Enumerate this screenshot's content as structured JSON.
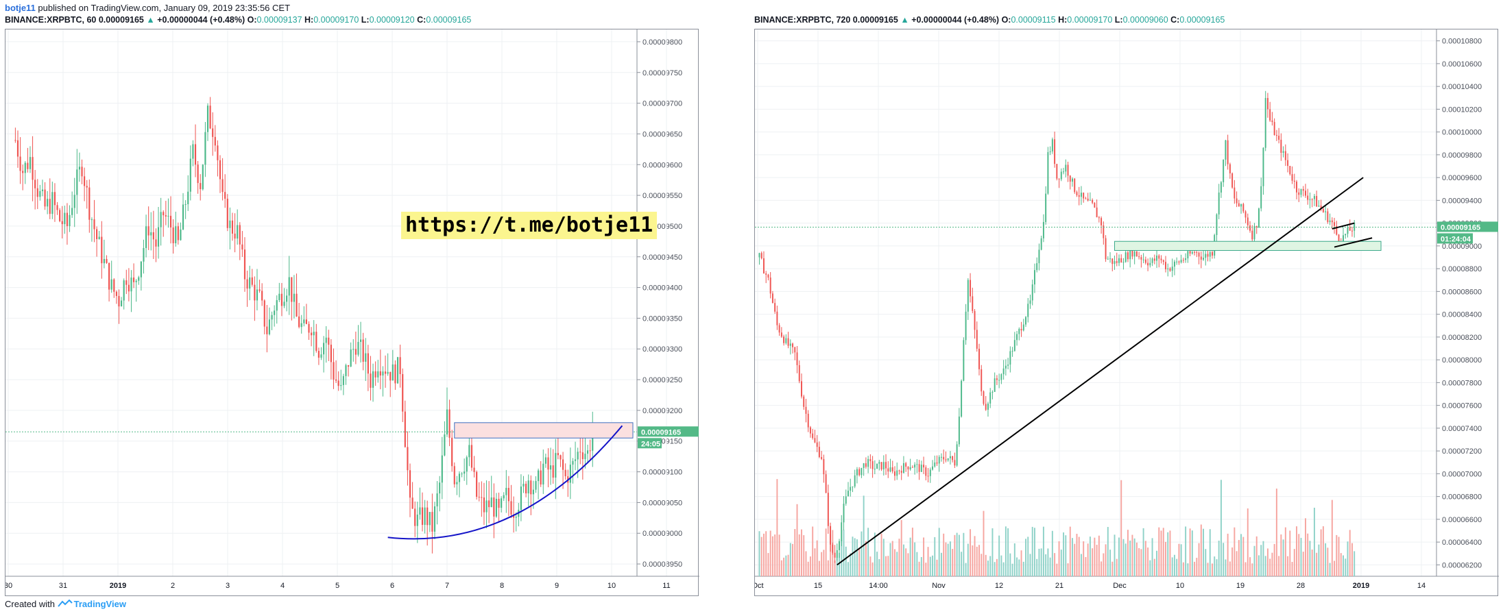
{
  "header": {
    "author": "botje11",
    "published_text": " published on TradingView.com, January 09, 2019 23:35:56 CET"
  },
  "footer": {
    "created_with": "Created with",
    "brand": "TradingView"
  },
  "annotation": {
    "text": "https://t.me/botje11"
  },
  "colors": {
    "up": "#4bb889",
    "down": "#ef5350",
    "vol_up": "#8fd2c8",
    "vol_down": "#f6a5a0",
    "last_price": "#53b987",
    "grid": "#eef0f3",
    "arc": "#1414c8",
    "trend": "#000000",
    "resist_fill": "#fbe0e0",
    "resist_stroke": "#3f6fc0",
    "support_fill": "#dff5e3",
    "support_stroke": "#3aa88a"
  },
  "chart_data": [
    {
      "type": "candlestick",
      "symbol": "BINANCE:XRPBTC, 60",
      "legend": {
        "symbol": "BINANCE:XRPBTC, 60",
        "last": "0.00009165",
        "change": "+0.00000044 (+0.48%)",
        "open": "0.00009137",
        "high": "0.00009170",
        "low": "0.00009120",
        "close": "0.00009165"
      },
      "last_price_label": "0.00009165",
      "countdown_label": "24:05",
      "x_tick_labels": [
        "30",
        "31",
        "2019",
        "2",
        "3",
        "4",
        "5",
        "6",
        "7",
        "8",
        "9",
        "10",
        "11"
      ],
      "y_tick_labels": [
        "0.00008950",
        "0.00009000",
        "0.00009050",
        "0.00009100",
        "0.00009150",
        "0.00009200",
        "0.00009250",
        "0.00009300",
        "0.00009350",
        "0.00009400",
        "0.00009450",
        "0.00009500",
        "0.00009550",
        "0.00009600",
        "0.00009650",
        "0.00009700",
        "0.00009750",
        "0.00009800"
      ],
      "ylim": [
        8.93e-05,
        9.82e-05
      ],
      "close_path": [
        [
          0,
          9.64e-05
        ],
        [
          3,
          9.59e-05
        ],
        [
          6,
          9.61e-05
        ],
        [
          9,
          9.56e-05
        ],
        [
          12,
          9.53e-05
        ],
        [
          15,
          9.54e-05
        ],
        [
          18,
          9.51e-05
        ],
        [
          21,
          9.5e-05
        ],
        [
          24,
          9.56e-05
        ],
        [
          27,
          9.6e-05
        ],
        [
          30,
          9.53e-05
        ],
        [
          33,
          9.48e-05
        ],
        [
          36,
          9.44e-05
        ],
        [
          39,
          9.4e-05
        ],
        [
          42,
          9.38e-05
        ],
        [
          45,
          9.42e-05
        ],
        [
          48,
          9.4e-05
        ],
        [
          51,
          9.45e-05
        ],
        [
          54,
          9.5e-05
        ],
        [
          57,
          9.47e-05
        ],
        [
          60,
          9.52e-05
        ],
        [
          63,
          9.5e-05
        ],
        [
          66,
          9.47e-05
        ],
        [
          69,
          9.54e-05
        ],
        [
          72,
          9.62e-05
        ],
        [
          75,
          9.57e-05
        ],
        [
          78,
          9.68e-05
        ],
        [
          81,
          9.65e-05
        ],
        [
          84,
          9.54e-05
        ],
        [
          87,
          9.5e-05
        ],
        [
          90,
          9.49e-05
        ],
        [
          93,
          9.42e-05
        ],
        [
          96,
          9.4e-05
        ],
        [
          99,
          9.38e-05
        ],
        [
          102,
          9.33e-05
        ],
        [
          105,
          9.37e-05
        ],
        [
          108,
          9.39e-05
        ],
        [
          111,
          9.41e-05
        ],
        [
          114,
          9.35e-05
        ],
        [
          117,
          9.33e-05
        ],
        [
          120,
          9.34e-05
        ],
        [
          123,
          9.3e-05
        ],
        [
          126,
          9.32e-05
        ],
        [
          129,
          9.26e-05
        ],
        [
          132,
          9.23e-05
        ],
        [
          135,
          9.28e-05
        ],
        [
          138,
          9.31e-05
        ],
        [
          141,
          9.29e-05
        ],
        [
          144,
          9.25e-05
        ],
        [
          147,
          9.28e-05
        ],
        [
          150,
          9.27e-05
        ],
        [
          153,
          9.26e-05
        ],
        [
          156,
          9.27e-05
        ],
        [
          159,
          9.1e-05
        ],
        [
          160,
          9.04e-05
        ],
        [
          163,
          9.02e-05
        ],
        [
          166,
          9.03e-05
        ],
        [
          169,
          9.01e-05
        ],
        [
          172,
          9.08e-05
        ],
        [
          175,
          9.19e-05
        ],
        [
          178,
          9.09e-05
        ],
        [
          181,
          9.11e-05
        ],
        [
          184,
          9.13e-05
        ],
        [
          187,
          9.06e-05
        ],
        [
          190,
          9.04e-05
        ],
        [
          193,
          9.05e-05
        ],
        [
          196,
          9.03e-05
        ],
        [
          199,
          9.06e-05
        ],
        [
          202,
          9.04e-05
        ],
        [
          205,
          9.06e-05
        ],
        [
          208,
          9.09e-05
        ],
        [
          211,
          9.07e-05
        ],
        [
          214,
          9.11e-05
        ],
        [
          217,
          9.1e-05
        ],
        [
          220,
          9.12e-05
        ],
        [
          223,
          9.09e-05
        ],
        [
          226,
          9.11e-05
        ],
        [
          229,
          9.14e-05
        ],
        [
          232,
          9.13e-05
        ],
        [
          234,
          9.165e-05
        ]
      ],
      "x_range": [
        -4,
        252
      ],
      "volume": false
    },
    {
      "type": "candlestick",
      "symbol": "BINANCE:XRPBTC, 720",
      "legend": {
        "symbol": "BINANCE:XRPBTC, 720",
        "last": "0.00009165",
        "change": "+0.00000044 (+0.48%)",
        "open": "0.00009115",
        "high": "0.00009170",
        "low": "0.00009060",
        "close": "0.00009165"
      },
      "last_price_label": "0.00009165",
      "countdown_label": "01:24:04",
      "x_tick_labels": [
        "Oct",
        "15",
        "14:00",
        "Nov",
        "12",
        "21",
        "Dec",
        "10",
        "19",
        "28",
        "2019",
        "14"
      ],
      "y_tick_labels": [
        "0.00006200",
        "0.00006400",
        "0.00006600",
        "0.00006800",
        "0.00007000",
        "0.00007200",
        "0.00007400",
        "0.00007600",
        "0.00007800",
        "0.00008000",
        "0.00008200",
        "0.00008400",
        "0.00008600",
        "0.00008800",
        "0.00009000",
        "0.00009200",
        "0.00009400",
        "0.00009600",
        "0.00009800",
        "0.00010000",
        "0.00010200",
        "0.00010400",
        "0.00010600",
        "0.00010800"
      ],
      "ylim": [
        6.1e-05,
        0.000109
      ],
      "close_path": [
        [
          0,
          8.9e-05
        ],
        [
          4,
          8.7e-05
        ],
        [
          8,
          8.3e-05
        ],
        [
          12,
          8.15e-05
        ],
        [
          16,
          8.05e-05
        ],
        [
          20,
          7.6e-05
        ],
        [
          24,
          7.3e-05
        ],
        [
          28,
          7.15e-05
        ],
        [
          30,
          6.8e-05
        ],
        [
          32,
          6.35e-05
        ],
        [
          34,
          6.27e-05
        ],
        [
          36,
          6.45e-05
        ],
        [
          38,
          6.7e-05
        ],
        [
          40,
          6.85e-05
        ],
        [
          44,
          7e-05
        ],
        [
          48,
          7.1e-05
        ],
        [
          52,
          7.05e-05
        ],
        [
          56,
          7.08e-05
        ],
        [
          60,
          7e-05
        ],
        [
          64,
          7.05e-05
        ],
        [
          68,
          7.08e-05
        ],
        [
          72,
          7.05e-05
        ],
        [
          76,
          7e-05
        ],
        [
          80,
          7.1e-05
        ],
        [
          84,
          7.15e-05
        ],
        [
          88,
          7.1e-05
        ],
        [
          90,
          7.5e-05
        ],
        [
          92,
          8.2e-05
        ],
        [
          94,
          8.7e-05
        ],
        [
          96,
          8.4e-05
        ],
        [
          98,
          8.1e-05
        ],
        [
          100,
          7.7e-05
        ],
        [
          102,
          7.6e-05
        ],
        [
          106,
          7.8e-05
        ],
        [
          110,
          7.9e-05
        ],
        [
          114,
          8.1e-05
        ],
        [
          118,
          8.3e-05
        ],
        [
          122,
          8.5e-05
        ],
        [
          126,
          9e-05
        ],
        [
          128,
          9.2e-05
        ],
        [
          130,
          9.8e-05
        ],
        [
          132,
          9.9e-05
        ],
        [
          134,
          9.6e-05
        ],
        [
          138,
          9.7e-05
        ],
        [
          142,
          9.5e-05
        ],
        [
          146,
          9.4e-05
        ],
        [
          150,
          9.35e-05
        ],
        [
          154,
          9.2e-05
        ],
        [
          156,
          8.9e-05
        ],
        [
          160,
          8.85e-05
        ],
        [
          164,
          8.9e-05
        ],
        [
          168,
          8.95e-05
        ],
        [
          172,
          8.9e-05
        ],
        [
          176,
          8.85e-05
        ],
        [
          180,
          8.9e-05
        ],
        [
          184,
          8.8e-05
        ],
        [
          188,
          8.85e-05
        ],
        [
          192,
          8.9e-05
        ],
        [
          196,
          8.95e-05
        ],
        [
          200,
          8.9e-05
        ],
        [
          204,
          8.95e-05
        ],
        [
          206,
          9.3e-05
        ],
        [
          208,
          9.6e-05
        ],
        [
          210,
          9.9e-05
        ],
        [
          212,
          9.6e-05
        ],
        [
          214,
          9.4e-05
        ],
        [
          218,
          9.3e-05
        ],
        [
          222,
          9.1e-05
        ],
        [
          224,
          9.2e-05
        ],
        [
          226,
          9.5e-05
        ],
        [
          228,
          0.000103
        ],
        [
          230,
          0.000101
        ],
        [
          234,
          9.9e-05
        ],
        [
          238,
          9.7e-05
        ],
        [
          242,
          9.5e-05
        ],
        [
          246,
          9.45e-05
        ],
        [
          250,
          9.4e-05
        ],
        [
          254,
          9.3e-05
        ],
        [
          258,
          9.2e-05
        ],
        [
          260,
          9.1e-05
        ],
        [
          262,
          9.05e-05
        ],
        [
          264,
          9.1e-05
        ],
        [
          266,
          9.14e-05
        ],
        [
          268,
          9.165e-05
        ]
      ],
      "x_range": [
        -2,
        305
      ],
      "volume": true
    }
  ]
}
